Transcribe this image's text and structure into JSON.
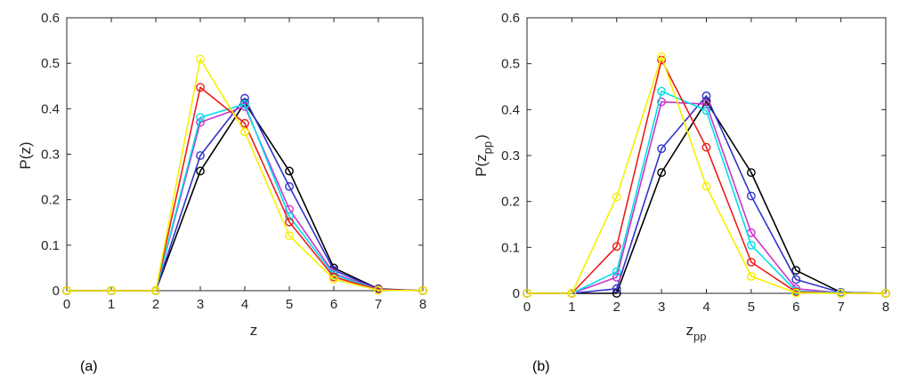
{
  "chart_data": [
    {
      "type": "line",
      "panel_label": "(a)",
      "xlabel": "z",
      "ylabel": "P(z)",
      "xlim": [
        0,
        8
      ],
      "ylim": [
        0,
        0.6
      ],
      "xticks": [
        "0",
        "1",
        "2",
        "3",
        "4",
        "5",
        "6",
        "7",
        "8"
      ],
      "yticks": [
        "0",
        "0.1",
        "0.2",
        "0.3",
        "0.4",
        "0.5",
        "0.6"
      ],
      "x": [
        0,
        1,
        2,
        3,
        4,
        5,
        6,
        7,
        8
      ],
      "series": [
        {
          "name": "black",
          "color": "#000000",
          "values": [
            0,
            0,
            0,
            0.263,
            0.413,
            0.263,
            0.05,
            0.004,
            0
          ]
        },
        {
          "name": "blue",
          "color": "#3333cc",
          "values": [
            0,
            0,
            0,
            0.297,
            0.423,
            0.229,
            0.045,
            0.003,
            0
          ]
        },
        {
          "name": "magenta",
          "color": "#cc33cc",
          "values": [
            0,
            0,
            0,
            0.37,
            0.405,
            0.179,
            0.038,
            0.003,
            0
          ]
        },
        {
          "name": "cyan",
          "color": "#00e0e8",
          "values": [
            0,
            0,
            0,
            0.381,
            0.41,
            0.163,
            0.035,
            0.002,
            0
          ]
        },
        {
          "name": "red",
          "color": "#ee1c1c",
          "values": [
            0,
            0,
            0,
            0.447,
            0.368,
            0.151,
            0.03,
            0.002,
            0
          ]
        },
        {
          "name": "yellow",
          "color": "#f5f000",
          "values": [
            0,
            0,
            0,
            0.509,
            0.349,
            0.121,
            0.025,
            0.001,
            0
          ]
        }
      ]
    },
    {
      "type": "line",
      "panel_label": "(b)",
      "xlabel": "z",
      "xlabel_sub": "pp",
      "ylabel": "P(z",
      "ylabel_sub": "pp",
      "ylabel_end": ")",
      "xlim": [
        0,
        8
      ],
      "ylim": [
        0,
        0.6
      ],
      "xticks": [
        "0",
        "1",
        "2",
        "3",
        "4",
        "5",
        "6",
        "7",
        "8"
      ],
      "yticks": [
        "0",
        "0.1",
        "0.2",
        "0.3",
        "0.4",
        "0.5",
        "0.6"
      ],
      "x": [
        0,
        1,
        2,
        3,
        4,
        5,
        6,
        7,
        8
      ],
      "series": [
        {
          "name": "black",
          "color": "#000000",
          "values": [
            0,
            0,
            0.0,
            0.263,
            0.418,
            0.263,
            0.05,
            0.002,
            0
          ]
        },
        {
          "name": "blue",
          "color": "#3333cc",
          "values": [
            0,
            0,
            0.01,
            0.315,
            0.43,
            0.212,
            0.03,
            0.002,
            0
          ]
        },
        {
          "name": "magenta",
          "color": "#cc33cc",
          "values": [
            0,
            0,
            0.035,
            0.417,
            0.412,
            0.132,
            0.01,
            0.001,
            0
          ]
        },
        {
          "name": "cyan",
          "color": "#00e0e8",
          "values": [
            0,
            0,
            0.047,
            0.44,
            0.398,
            0.105,
            0.005,
            0.001,
            0
          ]
        },
        {
          "name": "red",
          "color": "#ee1c1c",
          "values": [
            0,
            0,
            0.102,
            0.508,
            0.318,
            0.068,
            0.003,
            0.0,
            0
          ]
        },
        {
          "name": "yellow",
          "color": "#f5f000",
          "values": [
            0,
            0,
            0.21,
            0.515,
            0.233,
            0.037,
            0.001,
            0.0,
            0
          ]
        }
      ]
    }
  ]
}
